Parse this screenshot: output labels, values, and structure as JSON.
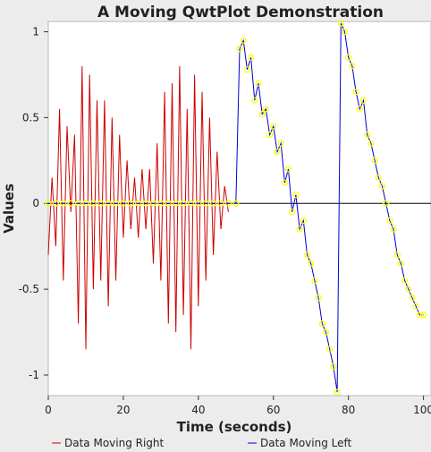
{
  "chart_data": {
    "type": "line",
    "title": "A Moving QwtPlot Demonstration",
    "xlabel": "Time (seconds)",
    "ylabel": "Values",
    "xlim": [
      0,
      102
    ],
    "ylim": [
      -1.12,
      1.06
    ],
    "x_ticks": [
      0,
      20,
      40,
      60,
      80,
      100
    ],
    "x_tick_labels": [
      "0",
      "20",
      "40",
      "60",
      "80",
      "100"
    ],
    "y_ticks": [
      -1,
      -0.5,
      0,
      0.5,
      1
    ],
    "y_tick_labels": [
      "-1",
      "-0.5",
      "0",
      "0.5",
      "1"
    ],
    "zero_line": true,
    "grid": false,
    "legend_position": "bottom",
    "colors": {
      "right": "#cc0000",
      "left": "#0000cc",
      "marker": "#ffff00",
      "zero_line": "#000000",
      "canvas": "#ffffff",
      "background": "#ececec"
    },
    "series": [
      {
        "name": "Data Moving Right",
        "color": "#cc0000",
        "style": "line",
        "x": [
          0,
          1,
          2,
          3,
          4,
          5,
          6,
          7,
          8,
          9,
          10,
          11,
          12,
          13,
          14,
          15,
          16,
          17,
          18,
          19,
          20,
          21,
          22,
          23,
          24,
          25,
          26,
          27,
          28,
          29,
          30,
          31,
          32,
          33,
          34,
          35,
          36,
          37,
          38,
          39,
          40,
          41,
          42,
          43,
          44,
          45,
          46,
          47,
          48
        ],
        "y": [
          -0.3,
          0.15,
          -0.25,
          0.55,
          -0.45,
          0.45,
          -0.05,
          0.4,
          -0.7,
          0.8,
          -0.85,
          0.75,
          -0.5,
          0.6,
          -0.45,
          0.6,
          -0.6,
          0.5,
          -0.45,
          0.4,
          -0.2,
          0.25,
          -0.15,
          0.15,
          -0.2,
          0.2,
          -0.15,
          0.2,
          -0.35,
          0.35,
          -0.45,
          0.65,
          -0.7,
          0.7,
          -0.75,
          0.8,
          -0.65,
          0.55,
          -0.85,
          0.75,
          -0.6,
          0.65,
          -0.45,
          0.5,
          -0.3,
          0.3,
          -0.15,
          0.1,
          -0.05
        ]
      },
      {
        "name": "Data Moving Left",
        "color": "#0000cc",
        "style": "line+markers",
        "marker_color": "#ffff00",
        "x": [
          0,
          2,
          4,
          6,
          8,
          10,
          12,
          14,
          16,
          18,
          20,
          22,
          24,
          26,
          28,
          30,
          32,
          34,
          36,
          38,
          40,
          42,
          44,
          46,
          48,
          50,
          51,
          52,
          53,
          54,
          55,
          56,
          57,
          58,
          59,
          60,
          61,
          62,
          63,
          64,
          65,
          66,
          67,
          68,
          69,
          70,
          71,
          72,
          73,
          74,
          75,
          76,
          77,
          78,
          79,
          80,
          81,
          82,
          83,
          84,
          85,
          86,
          87,
          88,
          89,
          90,
          91,
          92,
          93,
          94,
          95,
          96,
          97,
          98,
          99,
          100
        ],
        "y": [
          0,
          0,
          0,
          0,
          0,
          0,
          0,
          0,
          0,
          0,
          0,
          0,
          0,
          0,
          0,
          0,
          0,
          0,
          0,
          0,
          0,
          0,
          0,
          0,
          0,
          0,
          0.9,
          0.95,
          0.78,
          0.85,
          0.6,
          0.7,
          0.52,
          0.55,
          0.4,
          0.45,
          0.3,
          0.35,
          0.12,
          0.2,
          -0.05,
          0.05,
          -0.15,
          -0.1,
          -0.3,
          -0.35,
          -0.45,
          -0.55,
          -0.7,
          -0.75,
          -0.85,
          -0.95,
          -1.1,
          1.05,
          1.0,
          0.85,
          0.8,
          0.65,
          0.55,
          0.6,
          0.4,
          0.35,
          0.25,
          0.15,
          0.1,
          0.0,
          -0.1,
          -0.15,
          -0.3,
          -0.35,
          -0.45,
          -0.5,
          -0.55,
          -0.6,
          -0.65,
          -0.65
        ]
      }
    ]
  }
}
